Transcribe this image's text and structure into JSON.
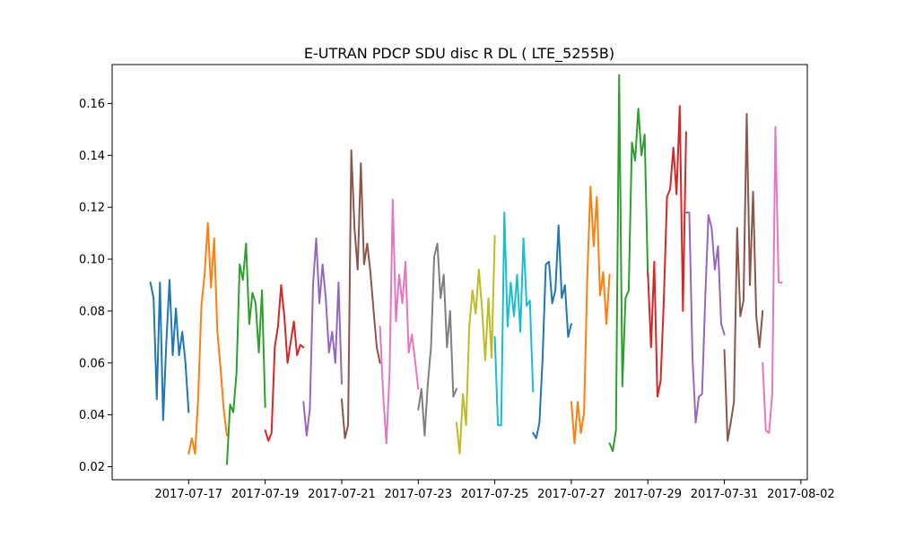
{
  "chart_data": {
    "type": "line",
    "title": "E-UTRAN PDCP SDU disc R DL ( LTE_5255B)",
    "xlabel": "",
    "ylabel": "",
    "x_axis": "date",
    "xlim": [
      "2017-07-15T00:00",
      "2017-08-02T04:00"
    ],
    "ylim": [
      0.015,
      0.175
    ],
    "x_ticks": [
      "2017-07-17",
      "2017-07-19",
      "2017-07-21",
      "2017-07-23",
      "2017-07-25",
      "2017-07-27",
      "2017-07-29",
      "2017-07-31",
      "2017-08-02"
    ],
    "y_ticks": [
      0.02,
      0.04,
      0.06,
      0.08,
      0.1,
      0.12,
      0.14,
      0.16
    ],
    "y_tick_labels": [
      "0.02",
      "0.04",
      "0.06",
      "0.08",
      "0.10",
      "0.12",
      "0.14",
      "0.16"
    ],
    "grid": false,
    "legend": "none",
    "series": [
      {
        "color": "#1f77b4",
        "x": [
          "2017-07-16T00:00",
          "2017-07-16T02:00",
          "2017-07-16T04:00",
          "2017-07-16T06:00",
          "2017-07-16T08:00",
          "2017-07-16T10:00",
          "2017-07-16T12:00",
          "2017-07-16T14:00",
          "2017-07-16T16:00",
          "2017-07-16T18:00",
          "2017-07-16T20:00",
          "2017-07-16T22:00",
          "2017-07-17T00:00"
        ],
        "y": [
          0.091,
          0.085,
          0.046,
          0.091,
          0.038,
          0.068,
          0.092,
          0.063,
          0.081,
          0.063,
          0.072,
          0.06,
          0.041
        ]
      },
      {
        "color": "#ff7f0e",
        "x": [
          "2017-07-17T00:00",
          "2017-07-17T02:00",
          "2017-07-17T04:00",
          "2017-07-17T06:00",
          "2017-07-17T08:00",
          "2017-07-17T10:00",
          "2017-07-17T12:00",
          "2017-07-17T14:00",
          "2017-07-17T16:00",
          "2017-07-17T18:00",
          "2017-07-17T20:00",
          "2017-07-17T22:00",
          "2017-07-18T00:00"
        ],
        "y": [
          0.025,
          0.031,
          0.025,
          0.047,
          0.082,
          0.094,
          0.114,
          0.089,
          0.108,
          0.072,
          0.058,
          0.042,
          0.032
        ]
      },
      {
        "color": "#2ca02c",
        "x": [
          "2017-07-18T00:00",
          "2017-07-18T02:00",
          "2017-07-18T04:00",
          "2017-07-18T06:00",
          "2017-07-18T08:00",
          "2017-07-18T10:00",
          "2017-07-18T12:00",
          "2017-07-18T14:00",
          "2017-07-18T16:00",
          "2017-07-18T18:00",
          "2017-07-18T20:00",
          "2017-07-18T22:00",
          "2017-07-19T00:00"
        ],
        "y": [
          0.021,
          0.044,
          0.041,
          0.056,
          0.098,
          0.092,
          0.106,
          0.075,
          0.087,
          0.083,
          0.064,
          0.088,
          0.043
        ]
      },
      {
        "color": "#d62728",
        "x": [
          "2017-07-19T00:00",
          "2017-07-19T02:00",
          "2017-07-19T04:00",
          "2017-07-19T06:00",
          "2017-07-19T08:00",
          "2017-07-19T10:00",
          "2017-07-19T12:00",
          "2017-07-19T14:00",
          "2017-07-19T16:00",
          "2017-07-19T18:00",
          "2017-07-19T20:00",
          "2017-07-19T22:00",
          "2017-07-20T00:00"
        ],
        "y": [
          0.034,
          0.03,
          0.033,
          0.066,
          0.074,
          0.09,
          0.078,
          0.06,
          0.068,
          0.076,
          0.063,
          0.067,
          0.066
        ]
      },
      {
        "color": "#9467bd",
        "x": [
          "2017-07-20T00:00",
          "2017-07-20T02:00",
          "2017-07-20T04:00",
          "2017-07-20T06:00",
          "2017-07-20T08:00",
          "2017-07-20T10:00",
          "2017-07-20T12:00",
          "2017-07-20T14:00",
          "2017-07-20T16:00",
          "2017-07-20T18:00",
          "2017-07-20T20:00",
          "2017-07-20T22:00",
          "2017-07-21T00:00"
        ],
        "y": [
          0.045,
          0.032,
          0.042,
          0.09,
          0.108,
          0.083,
          0.098,
          0.085,
          0.064,
          0.072,
          0.06,
          0.091,
          0.052
        ]
      },
      {
        "color": "#8c564b",
        "x": [
          "2017-07-21T00:00",
          "2017-07-21T02:00",
          "2017-07-21T04:00",
          "2017-07-21T06:00",
          "2017-07-21T08:00",
          "2017-07-21T10:00",
          "2017-07-21T12:00",
          "2017-07-21T14:00",
          "2017-07-21T16:00",
          "2017-07-21T18:00",
          "2017-07-21T20:00",
          "2017-07-21T22:00",
          "2017-07-22T00:00"
        ],
        "y": [
          0.046,
          0.031,
          0.036,
          0.142,
          0.112,
          0.096,
          0.137,
          0.098,
          0.106,
          0.095,
          0.08,
          0.066,
          0.06
        ]
      },
      {
        "color": "#e377c2",
        "x": [
          "2017-07-22T00:00",
          "2017-07-22T02:00",
          "2017-07-22T04:00",
          "2017-07-22T06:00",
          "2017-07-22T08:00",
          "2017-07-22T10:00",
          "2017-07-22T12:00",
          "2017-07-22T14:00",
          "2017-07-22T16:00",
          "2017-07-22T18:00",
          "2017-07-22T20:00",
          "2017-07-22T22:00",
          "2017-07-23T00:00"
        ],
        "y": [
          0.074,
          0.048,
          0.029,
          0.056,
          0.123,
          0.076,
          0.094,
          0.083,
          0.099,
          0.064,
          0.071,
          0.061,
          0.05
        ]
      },
      {
        "color": "#7f7f7f",
        "x": [
          "2017-07-23T00:00",
          "2017-07-23T02:00",
          "2017-07-23T04:00",
          "2017-07-23T06:00",
          "2017-07-23T08:00",
          "2017-07-23T10:00",
          "2017-07-23T12:00",
          "2017-07-23T14:00",
          "2017-07-23T16:00",
          "2017-07-23T18:00",
          "2017-07-23T20:00",
          "2017-07-23T22:00",
          "2017-07-24T00:00"
        ],
        "y": [
          0.042,
          0.05,
          0.032,
          0.052,
          0.066,
          0.101,
          0.106,
          0.085,
          0.094,
          0.066,
          0.08,
          0.047,
          0.05
        ]
      },
      {
        "color": "#bcbd22",
        "x": [
          "2017-07-24T00:00",
          "2017-07-24T02:00",
          "2017-07-24T04:00",
          "2017-07-24T06:00",
          "2017-07-24T08:00",
          "2017-07-24T10:00",
          "2017-07-24T12:00",
          "2017-07-24T14:00",
          "2017-07-24T16:00",
          "2017-07-24T18:00",
          "2017-07-24T20:00",
          "2017-07-24T22:00",
          "2017-07-25T00:00"
        ],
        "y": [
          0.037,
          0.025,
          0.048,
          0.036,
          0.074,
          0.088,
          0.079,
          0.096,
          0.081,
          0.061,
          0.085,
          0.062,
          0.109
        ]
      },
      {
        "color": "#17becf",
        "x": [
          "2017-07-25T00:00",
          "2017-07-25T02:00",
          "2017-07-25T04:00",
          "2017-07-25T06:00",
          "2017-07-25T08:00",
          "2017-07-25T10:00",
          "2017-07-25T12:00",
          "2017-07-25T14:00",
          "2017-07-25T16:00",
          "2017-07-25T18:00",
          "2017-07-25T20:00",
          "2017-07-25T22:00",
          "2017-07-26T00:00"
        ],
        "y": [
          0.07,
          0.036,
          0.036,
          0.118,
          0.074,
          0.091,
          0.078,
          0.094,
          0.072,
          0.108,
          0.082,
          0.084,
          0.049
        ]
      },
      {
        "color": "#1f77b4",
        "x": [
          "2017-07-26T00:00",
          "2017-07-26T02:00",
          "2017-07-26T04:00",
          "2017-07-26T06:00",
          "2017-07-26T08:00",
          "2017-07-26T10:00",
          "2017-07-26T12:00",
          "2017-07-26T14:00",
          "2017-07-26T16:00",
          "2017-07-26T18:00",
          "2017-07-26T20:00",
          "2017-07-26T22:00",
          "2017-07-27T00:00"
        ],
        "y": [
          0.033,
          0.031,
          0.037,
          0.062,
          0.098,
          0.099,
          0.083,
          0.088,
          0.113,
          0.085,
          0.09,
          0.07,
          0.075
        ]
      },
      {
        "color": "#ff7f0e",
        "x": [
          "2017-07-27T00:00",
          "2017-07-27T02:00",
          "2017-07-27T04:00",
          "2017-07-27T06:00",
          "2017-07-27T08:00",
          "2017-07-27T10:00",
          "2017-07-27T12:00",
          "2017-07-27T14:00",
          "2017-07-27T16:00",
          "2017-07-27T18:00",
          "2017-07-27T20:00",
          "2017-07-27T22:00",
          "2017-07-28T00:00"
        ],
        "y": [
          0.045,
          0.029,
          0.045,
          0.033,
          0.041,
          0.093,
          0.128,
          0.105,
          0.124,
          0.086,
          0.095,
          0.075,
          0.094
        ]
      },
      {
        "color": "#2ca02c",
        "x": [
          "2017-07-28T00:00",
          "2017-07-28T02:00",
          "2017-07-28T04:00",
          "2017-07-28T06:00",
          "2017-07-28T08:00",
          "2017-07-28T10:00",
          "2017-07-28T12:00",
          "2017-07-28T14:00",
          "2017-07-28T16:00",
          "2017-07-28T18:00",
          "2017-07-28T20:00",
          "2017-07-28T22:00",
          "2017-07-29T00:00"
        ],
        "y": [
          0.029,
          0.026,
          0.034,
          0.171,
          0.051,
          0.085,
          0.088,
          0.145,
          0.138,
          0.158,
          0.14,
          0.148,
          0.093
        ]
      },
      {
        "color": "#d62728",
        "x": [
          "2017-07-29T00:00",
          "2017-07-29T02:00",
          "2017-07-29T04:00",
          "2017-07-29T06:00",
          "2017-07-29T08:00",
          "2017-07-29T10:00",
          "2017-07-29T12:00",
          "2017-07-29T14:00",
          "2017-07-29T16:00",
          "2017-07-29T18:00",
          "2017-07-29T20:00",
          "2017-07-29T22:00",
          "2017-07-30T00:00"
        ],
        "y": [
          0.095,
          0.066,
          0.099,
          0.047,
          0.053,
          0.084,
          0.124,
          0.127,
          0.143,
          0.125,
          0.159,
          0.08,
          0.149
        ]
      },
      {
        "color": "#9467bd",
        "x": [
          "2017-07-30T00:00",
          "2017-07-30T02:00",
          "2017-07-30T04:00",
          "2017-07-30T06:00",
          "2017-07-30T08:00",
          "2017-07-30T10:00",
          "2017-07-30T12:00",
          "2017-07-30T14:00",
          "2017-07-30T16:00",
          "2017-07-30T18:00",
          "2017-07-30T20:00",
          "2017-07-30T22:00",
          "2017-07-31T00:00"
        ],
        "y": [
          0.118,
          0.118,
          0.062,
          0.037,
          0.047,
          0.048,
          0.085,
          0.117,
          0.112,
          0.096,
          0.105,
          0.075,
          0.071
        ]
      },
      {
        "color": "#8c564b",
        "x": [
          "2017-07-31T00:00",
          "2017-07-31T02:00",
          "2017-07-31T04:00",
          "2017-07-31T06:00",
          "2017-07-31T08:00",
          "2017-07-31T10:00",
          "2017-07-31T12:00",
          "2017-07-31T14:00",
          "2017-07-31T16:00",
          "2017-07-31T18:00",
          "2017-07-31T20:00",
          "2017-07-31T22:00",
          "2017-08-01T00:00"
        ],
        "y": [
          0.065,
          0.03,
          0.037,
          0.045,
          0.112,
          0.078,
          0.084,
          0.156,
          0.09,
          0.126,
          0.078,
          0.066,
          0.08
        ]
      },
      {
        "color": "#e377c2",
        "x": [
          "2017-08-01T00:00",
          "2017-08-01T02:00",
          "2017-08-01T04:00",
          "2017-08-01T06:00",
          "2017-08-01T08:00",
          "2017-08-01T10:00",
          "2017-08-01T12:00"
        ],
        "y": [
          0.06,
          0.034,
          0.033,
          0.048,
          0.151,
          0.091,
          0.091
        ]
      }
    ]
  }
}
